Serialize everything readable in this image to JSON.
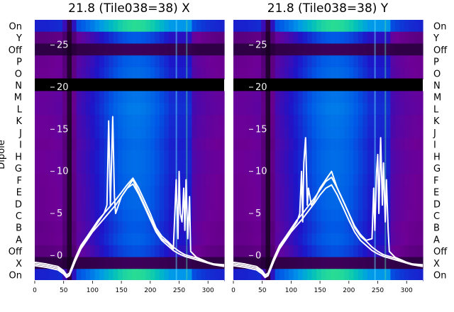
{
  "chart_data": [
    {
      "type": "heatmap",
      "title": "21.8 (Tile038=38) X",
      "ylabel": "Dipole",
      "row_labels": [
        "On",
        "Y",
        "Off",
        "P",
        "O",
        "N",
        "M",
        "L",
        "K",
        "J",
        "I",
        "H",
        "G",
        "F",
        "E",
        "D",
        "C",
        "B",
        "A",
        "Off",
        "X",
        "On"
      ],
      "x_ticks": [
        0,
        50,
        100,
        150,
        200,
        250,
        300
      ],
      "xlim": [
        0,
        328
      ],
      "overlay_y_ticks": [
        0,
        5,
        10,
        15,
        20,
        25
      ],
      "overlay_ylim": [
        -3,
        28
      ],
      "dark_band_x": [
        55,
        65
      ],
      "flagged_rows": [
        "N"
      ],
      "reference_line_y": -3,
      "overlay_series": [
        {
          "x": [
            0,
            20,
            40,
            50,
            55,
            60,
            70,
            80,
            90,
            100,
            110,
            120,
            125,
            128,
            131,
            135,
            138,
            140,
            150,
            160,
            170,
            180,
            190,
            200,
            210,
            220,
            230,
            240,
            245,
            248,
            250,
            252,
            255,
            258,
            260,
            262,
            265,
            268,
            270,
            280,
            290,
            300,
            310,
            328
          ],
          "y": [
            -1,
            -1.2,
            -1.5,
            -2,
            -2.5,
            -2.3,
            -0.5,
            1,
            2,
            3,
            4,
            5,
            6,
            16,
            6,
            16.5,
            7,
            5,
            7,
            8,
            9,
            7.5,
            6,
            4.5,
            3,
            2,
            1.5,
            0.8,
            9,
            2,
            10,
            5,
            4,
            8,
            3,
            9,
            2,
            7,
            0.5,
            -0.2,
            -0.5,
            -0.8,
            -1,
            -1.2
          ]
        },
        {
          "x": [
            0,
            20,
            40,
            50,
            55,
            60,
            70,
            80,
            90,
            100,
            110,
            120,
            130,
            140,
            150,
            160,
            170,
            180,
            190,
            200,
            210,
            220,
            230,
            240,
            250,
            260,
            270,
            280,
            290,
            300,
            310,
            328
          ],
          "y": [
            -1.2,
            -1.4,
            -1.7,
            -2.2,
            -2.6,
            -2.4,
            -0.7,
            0.8,
            1.8,
            2.8,
            3.6,
            4.4,
            5.2,
            6,
            7,
            8,
            8.5,
            7.3,
            5.8,
            4.3,
            2.8,
            1.8,
            1.2,
            0.6,
            0.2,
            -0.1,
            -0.3,
            -0.5,
            -0.7,
            -0.9,
            -1.1,
            -1.3
          ]
        },
        {
          "x": [
            0,
            20,
            40,
            50,
            55,
            60,
            70,
            80,
            90,
            100,
            110,
            120,
            130,
            140,
            150,
            160,
            170,
            180,
            190,
            200,
            210,
            220,
            230,
            240,
            250,
            260,
            270,
            280,
            290,
            300,
            310,
            328
          ],
          "y": [
            -0.8,
            -1,
            -1.3,
            -1.8,
            -2.3,
            -2.1,
            -0.3,
            1.2,
            2.2,
            3.2,
            4.2,
            5,
            5.8,
            6.6,
            7.5,
            8.4,
            9.2,
            8,
            6.5,
            5,
            3.3,
            2.3,
            1.7,
            1,
            0.5,
            0.1,
            -0.1,
            -0.3,
            -0.6,
            -0.8,
            -1,
            -1.1
          ]
        }
      ]
    },
    {
      "type": "heatmap",
      "title": "21.8 (Tile038=38) Y",
      "row_labels": [
        "On",
        "Y",
        "Off",
        "P",
        "O",
        "N",
        "M",
        "L",
        "K",
        "J",
        "I",
        "H",
        "G",
        "F",
        "E",
        "D",
        "C",
        "B",
        "A",
        "Off",
        "X",
        "On"
      ],
      "x_ticks": [
        0,
        50,
        100,
        150,
        200,
        250,
        300
      ],
      "xlim": [
        0,
        328
      ],
      "overlay_y_ticks": [
        0,
        5,
        10,
        15,
        20,
        25
      ],
      "overlay_ylim": [
        -3,
        28
      ],
      "dark_band_x": [
        55,
        65
      ],
      "flagged_rows": [
        "N"
      ],
      "reference_line_y": -3,
      "overlay_series": [
        {
          "x": [
            0,
            20,
            40,
            50,
            55,
            60,
            70,
            80,
            90,
            100,
            110,
            115,
            118,
            120,
            122,
            125,
            128,
            130,
            135,
            140,
            150,
            160,
            170,
            180,
            190,
            200,
            210,
            220,
            230,
            240,
            243,
            245,
            248,
            250,
            252,
            255,
            258,
            260,
            263,
            265,
            268,
            270,
            280,
            290,
            300,
            310,
            328
          ],
          "y": [
            -1,
            -1.2,
            -1.5,
            -2,
            -2.5,
            -2.3,
            -0.5,
            1,
            2,
            3,
            4,
            5,
            10,
            4,
            11,
            14,
            6,
            8,
            6,
            6.5,
            8,
            9,
            10,
            8,
            6.5,
            5,
            3.5,
            2.5,
            1.8,
            2,
            8,
            3,
            10,
            12,
            5,
            14,
            6,
            11,
            4,
            9,
            3,
            0.5,
            -0.2,
            -0.5,
            -0.8,
            -1,
            -1.2
          ]
        },
        {
          "x": [
            0,
            20,
            40,
            50,
            55,
            60,
            70,
            80,
            90,
            100,
            110,
            120,
            130,
            140,
            150,
            160,
            170,
            180,
            190,
            200,
            210,
            220,
            230,
            240,
            250,
            260,
            270,
            280,
            290,
            300,
            310,
            328
          ],
          "y": [
            -1.2,
            -1.4,
            -1.7,
            -2.2,
            -2.6,
            -2.4,
            -0.7,
            0.8,
            1.8,
            2.8,
            3.6,
            4.4,
            5.3,
            6.2,
            7.2,
            8,
            8.4,
            7.2,
            5.7,
            4.2,
            2.8,
            1.8,
            1.2,
            0.6,
            0.2,
            -0.1,
            -0.3,
            -0.5,
            -0.7,
            -0.9,
            -1.1,
            -1.3
          ]
        },
        {
          "x": [
            0,
            20,
            40,
            50,
            55,
            60,
            70,
            80,
            90,
            100,
            110,
            120,
            130,
            140,
            150,
            160,
            170,
            180,
            190,
            200,
            210,
            220,
            230,
            240,
            250,
            260,
            270,
            280,
            290,
            300,
            310,
            328
          ],
          "y": [
            -0.8,
            -1,
            -1.3,
            -1.8,
            -2.3,
            -2.1,
            -0.3,
            1.2,
            2.2,
            3.2,
            4.2,
            5,
            5.9,
            6.8,
            7.8,
            8.8,
            9.3,
            8,
            6.5,
            5,
            3.3,
            2.3,
            1.7,
            1,
            0.5,
            0.1,
            -0.1,
            -0.3,
            -0.6,
            -0.8,
            -1,
            -1.1
          ]
        }
      ]
    }
  ]
}
